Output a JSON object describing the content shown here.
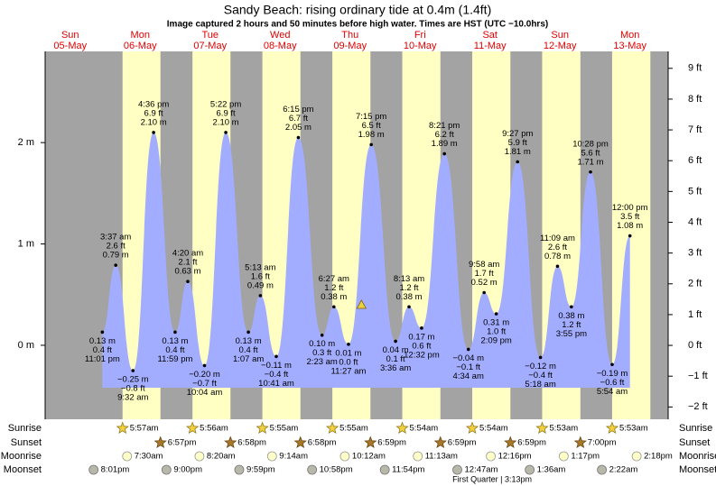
{
  "chart_data": {
    "type": "tide",
    "title": "Sandy Beach: rising  ordinary tide at 0.4m (1.4ft)",
    "subtitle": "Image captured 2 hours and 50 minutes before high water. Times are HST (UTC −10.0hrs)",
    "xlim": [
      3.4,
      217.1
    ],
    "ylim": [
      -0.73,
      2.9
    ],
    "yticks": [
      {
        "value": 0,
        "label": "0 m"
      },
      {
        "value": 1,
        "label": "1 m"
      },
      {
        "value": 2,
        "label": "2 m"
      }
    ],
    "y2lim": [
      -2.4,
      9.55
    ],
    "y2ticks": [
      {
        "value": -2,
        "label": "−2 ft"
      },
      {
        "value": -1,
        "label": "−1 ft"
      },
      {
        "value": 0,
        "label": "0 ft"
      },
      {
        "value": 1,
        "label": "1 ft"
      },
      {
        "value": 2,
        "label": "2 ft"
      },
      {
        "value": 3,
        "label": "3 ft"
      },
      {
        "value": 4,
        "label": "4 ft"
      },
      {
        "value": 5,
        "label": "5 ft"
      },
      {
        "value": 6,
        "label": "6 ft"
      },
      {
        "value": 7,
        "label": "7 ft"
      },
      {
        "value": 8,
        "label": "8 ft"
      },
      {
        "value": 9,
        "label": "9 ft"
      }
    ],
    "tide_color": "#a3adff",
    "day_color": "#ffffc4",
    "night_color": "#a3a3a3",
    "current": {
      "m": 0.4,
      "hour": 111.9
    },
    "rows": [
      "Sunrise",
      "Sunset",
      "Moonrise",
      "Moonset"
    ],
    "days": [
      {
        "dow": "Sun",
        "date": "05-May",
        "sunrise": null,
        "sunset": null,
        "moonrise": null,
        "moonset": "8:01pm",
        "tides": [
          {
            "time": "11:01 pm",
            "m": 0.13,
            "m_label": "0.13 m",
            "ft_label": "0.4 ft"
          }
        ]
      },
      {
        "dow": "Mon",
        "date": "06-May",
        "sunrise": "5:57am",
        "sunset": "6:57pm",
        "moonrise": "7:30am",
        "moonset": "9:00pm",
        "tides": [
          {
            "time": "3:37 am",
            "m": 0.79,
            "m_label": "0.79 m",
            "ft_label": "2.6 ft"
          },
          {
            "time": "9:32 am",
            "m": -0.25,
            "m_label": "−0.25 m",
            "ft_label": "−0.8 ft"
          },
          {
            "time": "4:36 pm",
            "m": 2.1,
            "m_label": "2.10 m",
            "ft_label": "6.9 ft"
          },
          {
            "time": "11:59 pm",
            "m": 0.13,
            "m_label": "0.13 m",
            "ft_label": "0.4 ft"
          }
        ]
      },
      {
        "dow": "Tue",
        "date": "07-May",
        "sunrise": "5:56am",
        "sunset": "6:58pm",
        "moonrise": "8:20am",
        "moonset": "9:59pm",
        "tides": [
          {
            "time": "4:20 am",
            "m": 0.63,
            "m_label": "0.63 m",
            "ft_label": "2.1 ft"
          },
          {
            "time": "10:04 am",
            "m": -0.2,
            "m_label": "−0.20 m",
            "ft_label": "−0.7 ft"
          },
          {
            "time": "5:22 pm",
            "m": 2.1,
            "m_label": "2.10 m",
            "ft_label": "6.9 ft"
          }
        ]
      },
      {
        "dow": "Wed",
        "date": "08-May",
        "sunrise": "5:55am",
        "sunset": "6:58pm",
        "moonrise": "9:14am",
        "moonset": "10:58pm",
        "tides": [
          {
            "time": "1:07 am",
            "m": 0.13,
            "m_label": "0.13 m",
            "ft_label": "0.4 ft"
          },
          {
            "time": "5:13 am",
            "m": 0.49,
            "m_label": "0.49 m",
            "ft_label": "1.6 ft"
          },
          {
            "time": "10:41 am",
            "m": -0.11,
            "m_label": "−0.11 m",
            "ft_label": "−0.4 ft"
          },
          {
            "time": "6:15 pm",
            "m": 2.05,
            "m_label": "2.05 m",
            "ft_label": "6.7 ft"
          }
        ]
      },
      {
        "dow": "Thu",
        "date": "09-May",
        "sunrise": "5:55am",
        "sunset": "6:59pm",
        "moonrise": "10:12am",
        "moonset": "11:54pm",
        "tides": [
          {
            "time": "2:23 am",
            "m": 0.1,
            "m_label": "0.10 m",
            "ft_label": "0.3 ft"
          },
          {
            "time": "6:27 am",
            "m": 0.38,
            "m_label": "0.38 m",
            "ft_label": "1.2 ft"
          },
          {
            "time": "11:27 am",
            "m": 0.01,
            "m_label": "0.01 m",
            "ft_label": "0.0 ft"
          },
          {
            "time": "7:15 pm",
            "m": 1.98,
            "m_label": "1.98 m",
            "ft_label": "6.5 ft"
          }
        ]
      },
      {
        "dow": "Fri",
        "date": "10-May",
        "sunrise": "5:54am",
        "sunset": "6:59pm",
        "moonrise": "11:13am",
        "moonset": null,
        "tides": [
          {
            "time": "3:36 am",
            "m": 0.04,
            "m_label": "0.04 m",
            "ft_label": "0.1 ft"
          },
          {
            "time": "8:13 am",
            "m": 0.38,
            "m_label": "0.38 m",
            "ft_label": "1.2 ft"
          },
          {
            "time": "12:32 pm",
            "m": 0.17,
            "m_label": "0.17 m",
            "ft_label": "0.6 ft"
          },
          {
            "time": "8:21 pm",
            "m": 1.89,
            "m_label": "1.89 m",
            "ft_label": "6.2 ft"
          }
        ]
      },
      {
        "dow": "Sat",
        "date": "11-May",
        "sunrise": "5:54am",
        "sunset": "6:59pm",
        "moonrise": "12:16pm",
        "moonset": "12:47am",
        "moon_phase": "First Quarter | 3:13pm",
        "tides": [
          {
            "time": "4:34 am",
            "m": -0.04,
            "m_label": "−0.04 m",
            "ft_label": "−0.1 ft"
          },
          {
            "time": "9:58 am",
            "m": 0.52,
            "m_label": "0.52 m",
            "ft_label": "1.7 ft"
          },
          {
            "time": "2:09 pm",
            "m": 0.31,
            "m_label": "0.31 m",
            "ft_label": "1.0 ft"
          },
          {
            "time": "9:27 pm",
            "m": 1.81,
            "m_label": "1.81 m",
            "ft_label": "5.9 ft"
          }
        ]
      },
      {
        "dow": "Sun",
        "date": "12-May",
        "sunrise": "5:53am",
        "sunset": "7:00pm",
        "moonrise": "1:17pm",
        "moonset": "1:36am",
        "tides": [
          {
            "time": "5:18 am",
            "m": -0.12,
            "m_label": "−0.12 m",
            "ft_label": "−0.4 ft"
          },
          {
            "time": "11:09 am",
            "m": 0.78,
            "m_label": "0.78 m",
            "ft_label": "2.6 ft"
          },
          {
            "time": "3:55 pm",
            "m": 0.38,
            "m_label": "0.38 m",
            "ft_label": "1.2 ft"
          },
          {
            "time": "10:28 pm",
            "m": 1.71,
            "m_label": "1.71 m",
            "ft_label": "5.6 ft"
          }
        ]
      },
      {
        "dow": "Mon",
        "date": "13-May",
        "sunrise": "5:53am",
        "sunset": null,
        "moonrise": "2:18pm",
        "moonset": "2:22am",
        "tides": [
          {
            "time": "5:54 am",
            "m": -0.19,
            "m_label": "−0.19 m",
            "ft_label": "−0.6 ft"
          },
          {
            "time": "12:00 pm",
            "m": 1.08,
            "m_label": "1.08 m",
            "ft_label": "3.5 ft"
          }
        ]
      }
    ]
  }
}
